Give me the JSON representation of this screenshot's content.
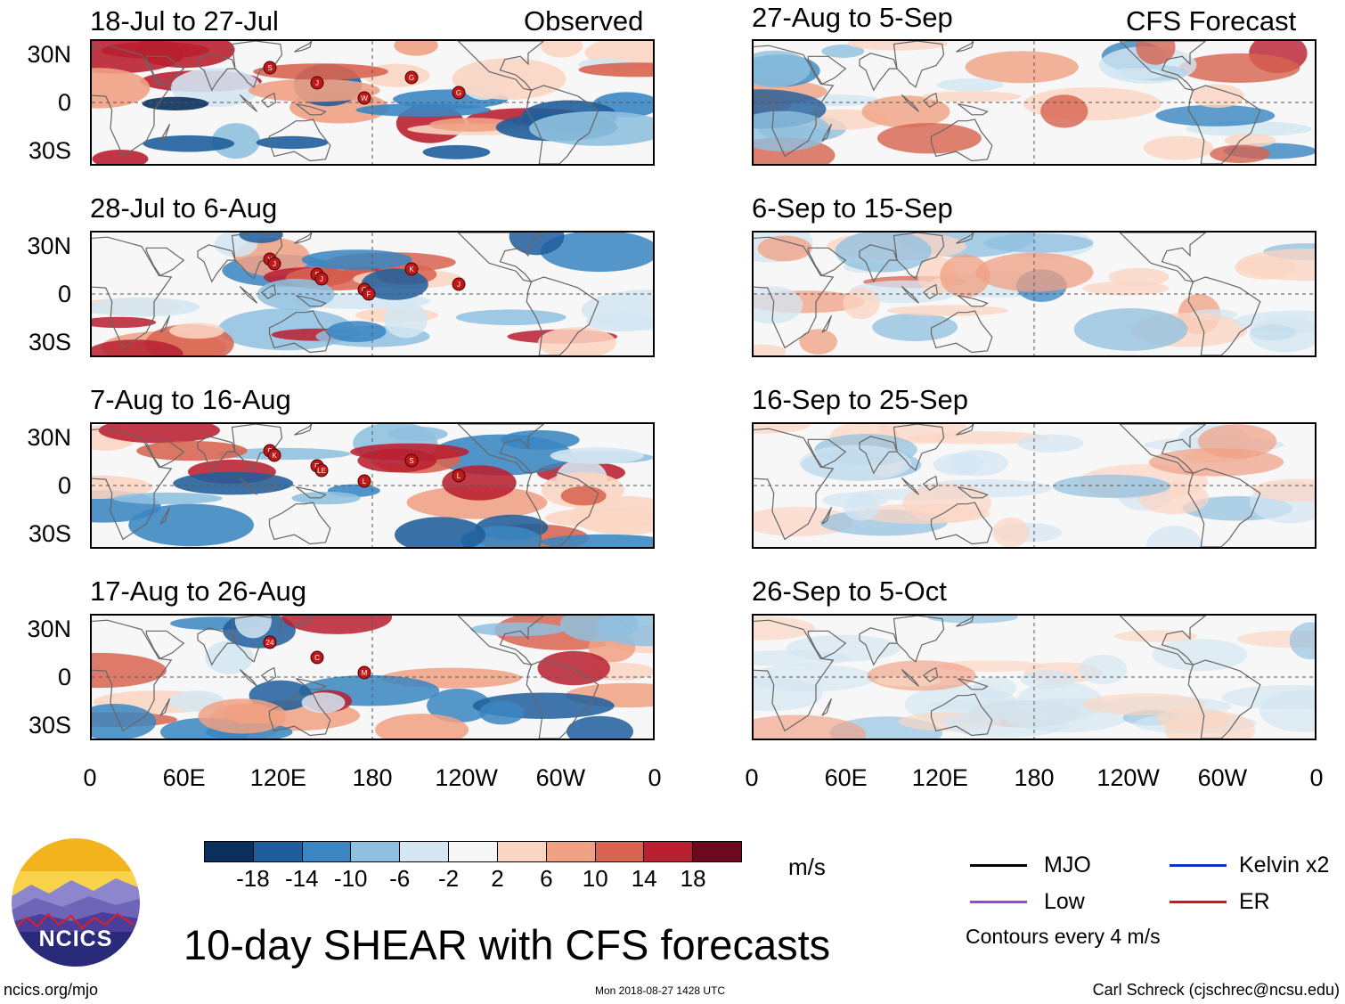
{
  "figure_title": "10-day SHEAR with CFS forecasts",
  "observed_label": "Observed",
  "forecast_label": "CFS Forecast",
  "panels": [
    {
      "id": "p1",
      "title": "18-Jul to 27-Jul",
      "column": "observed"
    },
    {
      "id": "p2",
      "title": "28-Jul to 6-Aug",
      "column": "observed"
    },
    {
      "id": "p3",
      "title": "7-Aug to 16-Aug",
      "column": "observed"
    },
    {
      "id": "p4",
      "title": "17-Aug to 26-Aug",
      "column": "observed"
    },
    {
      "id": "p5",
      "title": "27-Aug to 5-Sep",
      "column": "forecast"
    },
    {
      "id": "p6",
      "title": "6-Sep to 15-Sep",
      "column": "forecast"
    },
    {
      "id": "p7",
      "title": "16-Sep to 25-Sep",
      "column": "forecast"
    },
    {
      "id": "p8",
      "title": "26-Sep to 5-Oct",
      "column": "forecast"
    }
  ],
  "y_ticks": [
    "30N",
    "0",
    "30S"
  ],
  "x_ticks": [
    "0",
    "60E",
    "120E",
    "180",
    "120W",
    "60W",
    "0"
  ],
  "colorbar": {
    "unit": "m/s",
    "colors": [
      "#0a2f5c",
      "#1f5e9c",
      "#3a86c2",
      "#8fc0df",
      "#d3e6f2",
      "#f7f7f7",
      "#fbd5c2",
      "#f0a184",
      "#d86450",
      "#b92030",
      "#6b0a1e"
    ],
    "labels": [
      "-18",
      "-14",
      "-10",
      "-6",
      "-2",
      "2",
      "6",
      "10",
      "14",
      "18"
    ]
  },
  "legend": {
    "items": [
      {
        "label": "MJO",
        "color": "#000000"
      },
      {
        "label": "Kelvin x2",
        "color": "#1030d0"
      },
      {
        "label": "Low",
        "color": "#a040e0"
      },
      {
        "label": "ER",
        "color": "#e01010"
      }
    ],
    "note": "Contours every 4 m/s"
  },
  "logo_text": "NCICS",
  "footer": {
    "left": "ncics.org/mjo",
    "center": "Mon 2018-08-27 1428 UTC",
    "right": "Carl Schreck (cjschrec@ncsu.edu)"
  },
  "storm_markers": {
    "p1": [
      "S",
      "J",
      "W",
      "G",
      "G"
    ],
    "p2": [
      "Y",
      "S",
      "G",
      "K",
      "J",
      "J",
      "J",
      "F"
    ],
    "p3": [
      "B",
      "R",
      "L",
      "S",
      "L",
      "K",
      "LE"
    ],
    "p4": [
      "24",
      "C",
      "M"
    ]
  }
}
